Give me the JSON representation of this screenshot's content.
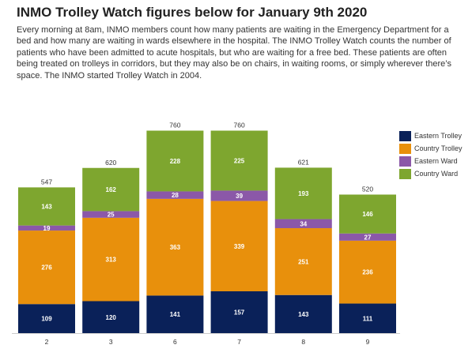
{
  "title": "INMO Trolley Watch figures below for January 9th 2020",
  "description": "Every morning at 8am, INMO members count how many patients are waiting in the Emergency Department for a bed and how many are waiting in wards elsewhere in the hospital. The INMO Trolley Watch counts the number of patients who have been admitted to acute hospitals, but who are waiting for a free bed. These patients are often being treated on trolleys in corridors, but they may also be on chairs, in waiting rooms, or simply wherever there’s space. The INMO started Trolley Watch in 2004.",
  "chart_data": {
    "type": "bar",
    "stacked": true,
    "categories": [
      "2",
      "3",
      "6",
      "7",
      "8",
      "9"
    ],
    "series": [
      {
        "name": "Eastern Trolley",
        "color": "#0a2159",
        "values": [
          109,
          120,
          141,
          157,
          143,
          111
        ]
      },
      {
        "name": "Country Trolley",
        "color": "#e8900c",
        "values": [
          276,
          313,
          363,
          339,
          251,
          236
        ]
      },
      {
        "name": "Eastern Ward",
        "color": "#8b58a8",
        "values": [
          19,
          25,
          28,
          39,
          34,
          27
        ]
      },
      {
        "name": "Country Ward",
        "color": "#7ea62f",
        "values": [
          143,
          162,
          228,
          225,
          193,
          146
        ]
      }
    ],
    "totals": [
      547,
      620,
      760,
      760,
      621,
      520
    ],
    "ylim": [
      0,
      800
    ],
    "legend_position": "top-right",
    "grid": false
  }
}
